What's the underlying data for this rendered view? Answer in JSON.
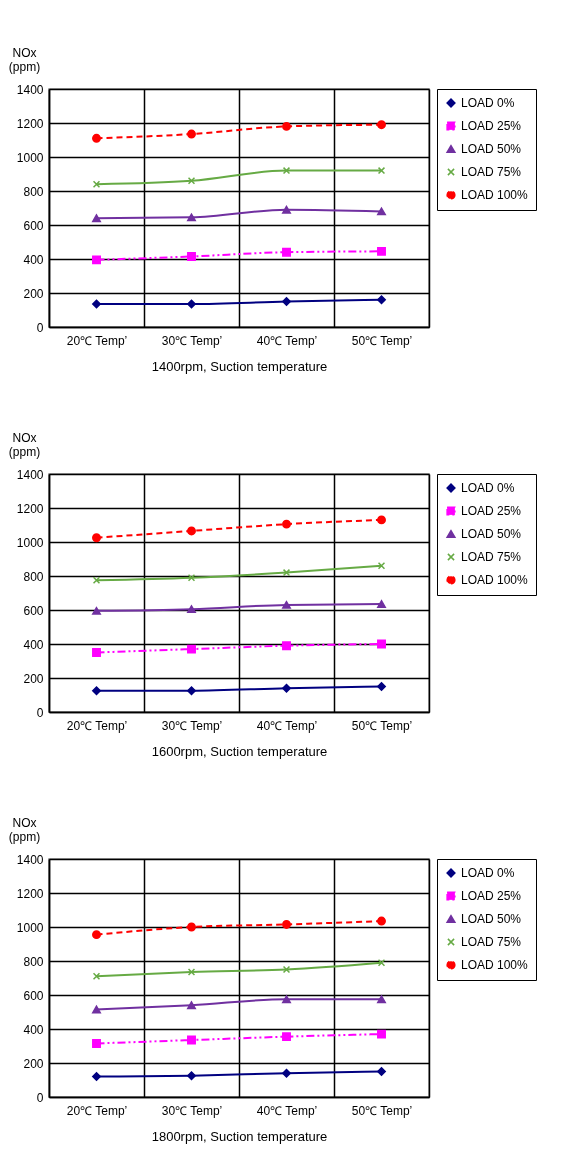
{
  "chart_data": [
    {
      "type": "line",
      "ylabel": "NOx\n(ppm)",
      "xlabel": "1400rpm,  Suction temperature",
      "categories": [
        "20℃ Temp’",
        "30℃ Temp’",
        "40℃ Temp’",
        "50℃ Temp’"
      ],
      "ylim": [
        0,
        1400
      ],
      "yticks": [
        0,
        200,
        400,
        600,
        800,
        1000,
        1200,
        1400
      ],
      "grid": true,
      "legend": "right",
      "series": [
        {
          "name": "LOAD  0%",
          "color": "#000080",
          "marker": "diamond",
          "line_style": "solid",
          "values": [
            135,
            135,
            150,
            160
          ]
        },
        {
          "name": "LOAD 25%",
          "color": "#ff00ff",
          "marker": "square",
          "line_style": "dashdot",
          "values": [
            395,
            415,
            440,
            445
          ]
        },
        {
          "name": "LOAD 50%",
          "color": "#7030a0",
          "marker": "triangle",
          "line_style": "solid",
          "values": [
            640,
            645,
            690,
            680
          ]
        },
        {
          "name": "LOAD 75%",
          "color": "#66aa44",
          "marker": "cross",
          "line_style": "solid",
          "values": [
            840,
            860,
            920,
            920
          ]
        },
        {
          "name": "LOAD 100%",
          "color": "#ff0000",
          "marker": "circle",
          "line_style": "dashed",
          "values": [
            1110,
            1135,
            1180,
            1190
          ]
        }
      ]
    },
    {
      "type": "line",
      "ylabel": "NOx\n(ppm)",
      "xlabel": "1600rpm,  Suction temperature",
      "categories": [
        "20℃ Temp’",
        "30℃ Temp’",
        "40℃ Temp’",
        "50℃ Temp’"
      ],
      "ylim": [
        0,
        1400
      ],
      "yticks": [
        0,
        200,
        400,
        600,
        800,
        1000,
        1200,
        1400
      ],
      "grid": true,
      "legend": "right",
      "series": [
        {
          "name": "LOAD  0%",
          "color": "#000080",
          "marker": "diamond",
          "line_style": "solid",
          "values": [
            125,
            125,
            140,
            150
          ]
        },
        {
          "name": "LOAD 25%",
          "color": "#ff00ff",
          "marker": "square",
          "line_style": "dashdot",
          "values": [
            350,
            370,
            390,
            400
          ]
        },
        {
          "name": "LOAD 50%",
          "color": "#7030a0",
          "marker": "triangle",
          "line_style": "solid",
          "values": [
            595,
            605,
            630,
            635
          ]
        },
        {
          "name": "LOAD 75%",
          "color": "#66aa44",
          "marker": "cross",
          "line_style": "solid",
          "values": [
            775,
            790,
            820,
            860
          ]
        },
        {
          "name": "LOAD 100%",
          "color": "#ff0000",
          "marker": "circle",
          "line_style": "dashed",
          "values": [
            1025,
            1065,
            1105,
            1130
          ]
        }
      ]
    },
    {
      "type": "line",
      "ylabel": "NOx\n(ppm)",
      "xlabel": "1800rpm,  Suction temperature",
      "categories": [
        "20℃ Temp’",
        "30℃ Temp’",
        "40℃ Temp’",
        "50℃ Temp’"
      ],
      "ylim": [
        0,
        1400
      ],
      "yticks": [
        0,
        200,
        400,
        600,
        800,
        1000,
        1200,
        1400
      ],
      "grid": true,
      "legend": "right",
      "series": [
        {
          "name": "LOAD  0%",
          "color": "#000080",
          "marker": "diamond",
          "line_style": "solid",
          "values": [
            120,
            125,
            140,
            150
          ]
        },
        {
          "name": "LOAD 25%",
          "color": "#ff00ff",
          "marker": "square",
          "line_style": "dashdot",
          "values": [
            315,
            335,
            355,
            370
          ]
        },
        {
          "name": "LOAD 50%",
          "color": "#7030a0",
          "marker": "triangle",
          "line_style": "solid",
          "values": [
            515,
            540,
            575,
            575
          ]
        },
        {
          "name": "LOAD 75%",
          "color": "#66aa44",
          "marker": "cross",
          "line_style": "solid",
          "values": [
            710,
            735,
            750,
            790
          ]
        },
        {
          "name": "LOAD 100%",
          "color": "#ff0000",
          "marker": "circle",
          "line_style": "dashed",
          "values": [
            955,
            1000,
            1015,
            1035
          ]
        }
      ]
    }
  ]
}
